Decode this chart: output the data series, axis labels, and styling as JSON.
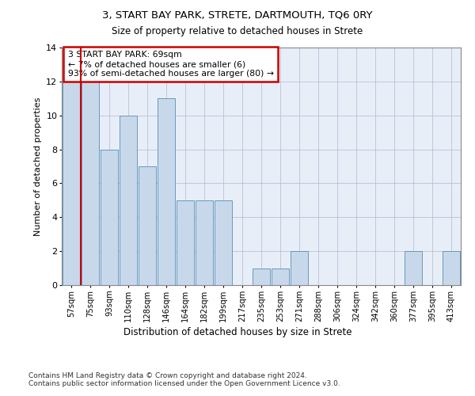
{
  "title1": "3, START BAY PARK, STRETE, DARTMOUTH, TQ6 0RY",
  "title2": "Size of property relative to detached houses in Strete",
  "xlabel": "Distribution of detached houses by size in Strete",
  "ylabel": "Number of detached properties",
  "categories": [
    "57sqm",
    "75sqm",
    "93sqm",
    "110sqm",
    "128sqm",
    "146sqm",
    "164sqm",
    "182sqm",
    "199sqm",
    "217sqm",
    "235sqm",
    "253sqm",
    "271sqm",
    "288sqm",
    "306sqm",
    "324sqm",
    "342sqm",
    "360sqm",
    "377sqm",
    "395sqm",
    "413sqm"
  ],
  "values": [
    12,
    12,
    8,
    10,
    7,
    11,
    5,
    5,
    5,
    0,
    1,
    1,
    2,
    0,
    0,
    0,
    0,
    0,
    2,
    0,
    2
  ],
  "bar_color": "#c8d8eb",
  "bar_edge_color": "#6699bb",
  "highlight_line_color": "#cc0000",
  "annotation_text": "3 START BAY PARK: 69sqm\n← 7% of detached houses are smaller (6)\n93% of semi-detached houses are larger (80) →",
  "annotation_box_color": "#ffffff",
  "annotation_box_edge": "#cc0000",
  "ylim": [
    0,
    14
  ],
  "yticks": [
    0,
    2,
    4,
    6,
    8,
    10,
    12,
    14
  ],
  "grid_color": "#b0b8d0",
  "background_color": "#e8eef8",
  "footer": "Contains HM Land Registry data © Crown copyright and database right 2024.\nContains public sector information licensed under the Open Government Licence v3.0."
}
